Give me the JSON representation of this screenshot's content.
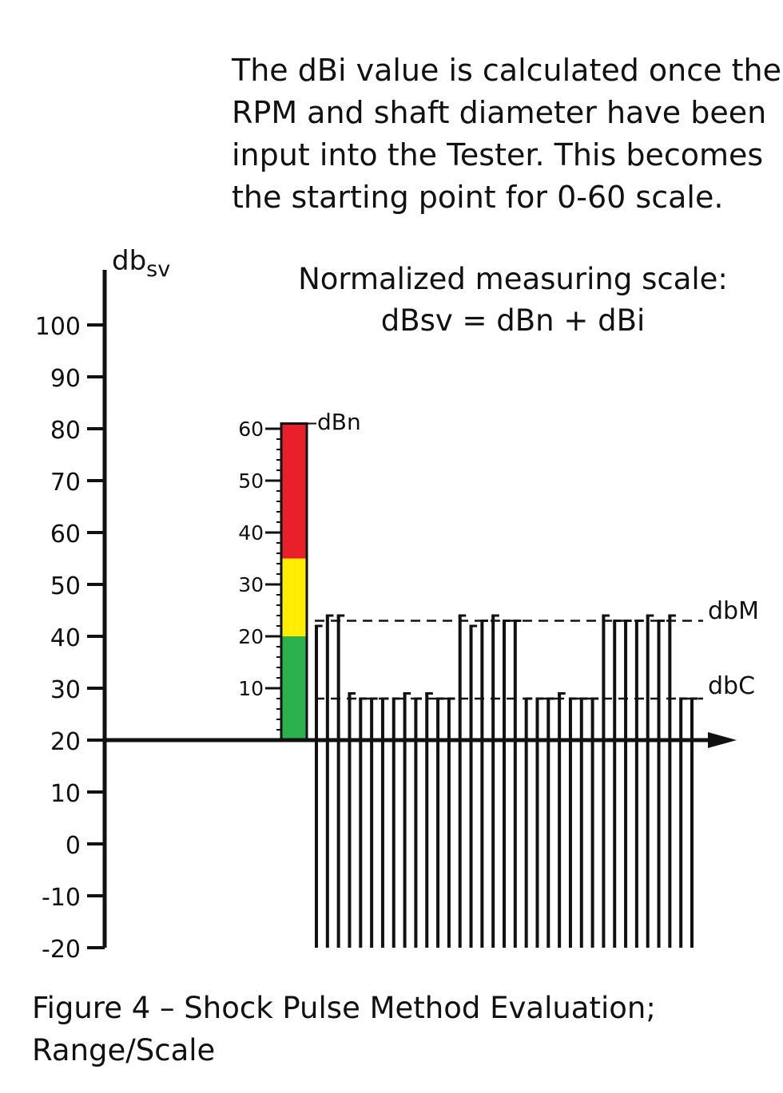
{
  "intro_lines": [
    "The dBi value is calculated once the",
    "RPM and shaft diameter have been",
    "input into the Tester. This becomes",
    "the starting point for 0-60 scale."
  ],
  "caption_lines": [
    "Figure 4 – Shock Pulse Method Evaluation;",
    "Range/Scale"
  ],
  "diagram": {
    "y_axis_label_main": "db",
    "y_axis_label_sub": "sv",
    "scale_title_line1": "Normalized measuring scale:",
    "scale_title_line2": "dBsv = dBn + dBi",
    "y_ticks": [
      "100",
      "90",
      "80",
      "70",
      "60",
      "50",
      "40",
      "30",
      "20",
      "10",
      "0",
      "-10",
      "-20"
    ],
    "y_tick_values": [
      100,
      90,
      80,
      70,
      60,
      50,
      40,
      30,
      20,
      10,
      0,
      -10,
      -20
    ],
    "dbn_ticks": [
      "60",
      "50",
      "40",
      "30",
      "20",
      "10"
    ],
    "dbn_tick_values": [
      60,
      50,
      40,
      30,
      20,
      10
    ],
    "dbn_label": "dBn",
    "dbm_label": "dbM",
    "dbc_label": "dbC",
    "dbn_origin_dbsv": 20,
    "dbm_level_dbsv": 43,
    "dbc_level_dbsv": 28,
    "color_bands": [
      {
        "from": 0,
        "to": 20,
        "color": "#2bb24c"
      },
      {
        "from": 20,
        "to": 35,
        "color": "#ffee00"
      },
      {
        "from": 35,
        "to": 61,
        "color": "#e8202a"
      }
    ],
    "pulse_peaks_dbsv": [
      42,
      44,
      44,
      29,
      28,
      28,
      28,
      28,
      29,
      28,
      29,
      28,
      28,
      44,
      42,
      43,
      44,
      43,
      43,
      28,
      28,
      28,
      29,
      28,
      28,
      28,
      44,
      43,
      43,
      43,
      44,
      43,
      44,
      28,
      28
    ],
    "pulse_bottom_dbsv": -20
  }
}
